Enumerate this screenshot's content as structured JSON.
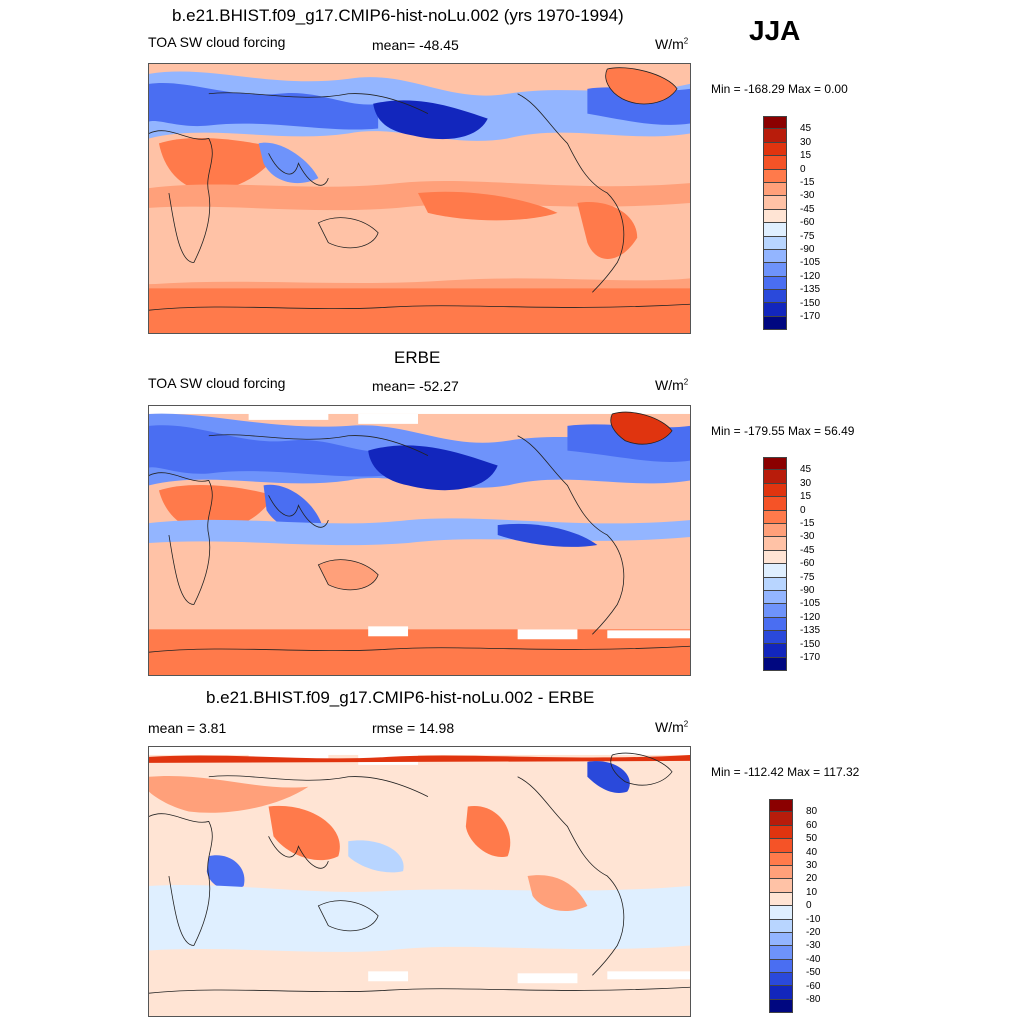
{
  "season": "JJA",
  "units_main": "W/m",
  "units_sup": "2",
  "panels": [
    {
      "title": "b.e21.BHIST.f09_g17.CMIP6-hist-noLu.002 (yrs 1970-1994)",
      "left_label": "TOA SW cloud forcing",
      "center_label": "mean= -48.45",
      "minmax": "Min = -168.29 Max =   0.00"
    },
    {
      "title": "ERBE",
      "left_label": "TOA SW cloud forcing",
      "center_label": "mean= -52.27",
      "minmax": "Min = -179.55 Max =  56.49"
    },
    {
      "title": "b.e21.BHIST.f09_g17.CMIP6-hist-noLu.002 - ERBE",
      "left_label": "mean =   3.81",
      "center_label": "rmse =  14.98",
      "minmax": "Min = -112.42 Max = 117.32"
    }
  ],
  "colorbar_main": {
    "labels": [
      "45",
      "30",
      "15",
      "0",
      "-15",
      "-30",
      "-45",
      "-60",
      "-75",
      "-90",
      "-105",
      "-120",
      "-135",
      "-150",
      "-170"
    ],
    "colors": [
      "#8b0000",
      "#b81c0b",
      "#e0340f",
      "#f55327",
      "#ff7a4b",
      "#ffa07a",
      "#ffc2a6",
      "#ffe4d4",
      "#dfefff",
      "#b8d5ff",
      "#93b5ff",
      "#6e93fb",
      "#4a6ef2",
      "#2a49db",
      "#1226bd",
      "#000780"
    ]
  },
  "colorbar_diff": {
    "labels": [
      "80",
      "60",
      "50",
      "40",
      "30",
      "20",
      "10",
      "0",
      "-10",
      "-20",
      "-30",
      "-40",
      "-50",
      "-60",
      "-80"
    ],
    "colors": [
      "#8b0000",
      "#b81c0b",
      "#e0340f",
      "#f55327",
      "#ff7a4b",
      "#ffa07a",
      "#ffc2a6",
      "#ffe4d4",
      "#dfefff",
      "#b8d5ff",
      "#93b5ff",
      "#6e93fb",
      "#4a6ef2",
      "#2a49db",
      "#1226bd",
      "#000780"
    ]
  }
}
